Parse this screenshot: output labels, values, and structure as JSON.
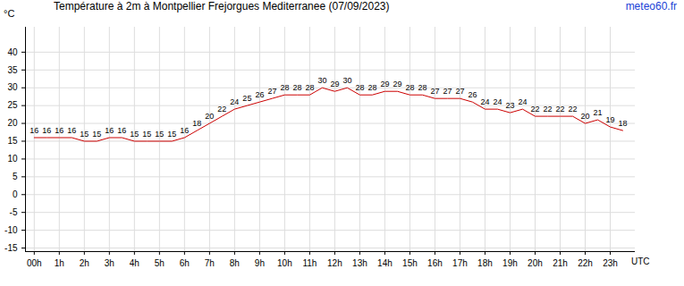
{
  "chart_data": {
    "type": "line",
    "title": "Température à 2m à Montpellier Frejorgues Mediterranee (07/09/2023)",
    "annotations": [
      "meteo60.fr"
    ],
    "x_label": "UTC",
    "y_label": "°C",
    "x": [
      0,
      0.5,
      1,
      1.5,
      2,
      2.5,
      3,
      3.5,
      4,
      4.5,
      5,
      5.5,
      6,
      6.5,
      7,
      7.5,
      8,
      8.5,
      9,
      9.5,
      10,
      10.5,
      11,
      11.5,
      12,
      12.5,
      13,
      13.5,
      14,
      14.5,
      15,
      15.5,
      16,
      16.5,
      17,
      17.5,
      18,
      18.5,
      19,
      19.5,
      20,
      20.5,
      21,
      21.5,
      22,
      22.5,
      23,
      23.5
    ],
    "values": [
      16,
      16,
      16,
      16,
      15,
      15,
      16,
      16,
      15,
      15,
      15,
      15,
      16,
      18,
      20,
      22,
      24,
      25,
      26,
      27,
      28,
      28,
      28,
      30,
      29,
      30,
      28,
      28,
      29,
      29,
      28,
      28,
      27,
      27,
      27,
      26,
      24,
      24,
      23,
      24,
      22,
      22,
      22,
      22,
      20,
      21,
      19,
      18
    ],
    "color": "#cc0000",
    "data_labels": true,
    "grid": true,
    "xlim": [
      -0.35,
      24
    ],
    "xticks": [
      {
        "value": 0,
        "label": "00h"
      },
      {
        "value": 1,
        "label": "1h"
      },
      {
        "value": 2,
        "label": "2h"
      },
      {
        "value": 3,
        "label": "3h"
      },
      {
        "value": 4,
        "label": "4h"
      },
      {
        "value": 5,
        "label": "5h"
      },
      {
        "value": 6,
        "label": "6h"
      },
      {
        "value": 7,
        "label": "7h"
      },
      {
        "value": 8,
        "label": "8h"
      },
      {
        "value": 9,
        "label": "9h"
      },
      {
        "value": 10,
        "label": "10h"
      },
      {
        "value": 11,
        "label": "11h"
      },
      {
        "value": 12,
        "label": "12h"
      },
      {
        "value": 13,
        "label": "13h"
      },
      {
        "value": 14,
        "label": "14h"
      },
      {
        "value": 15,
        "label": "15h"
      },
      {
        "value": 16,
        "label": "16h"
      },
      {
        "value": 17,
        "label": "17h"
      },
      {
        "value": 18,
        "label": "18h"
      },
      {
        "value": 19,
        "label": "19h"
      },
      {
        "value": 20,
        "label": "20h"
      },
      {
        "value": 21,
        "label": "21h"
      },
      {
        "value": 22,
        "label": "22h"
      },
      {
        "value": 23,
        "label": "23h"
      }
    ],
    "ylim": [
      -16,
      47
    ],
    "yticks": [
      -15,
      -10,
      -5,
      0,
      5,
      10,
      15,
      20,
      25,
      30,
      35,
      40
    ]
  }
}
